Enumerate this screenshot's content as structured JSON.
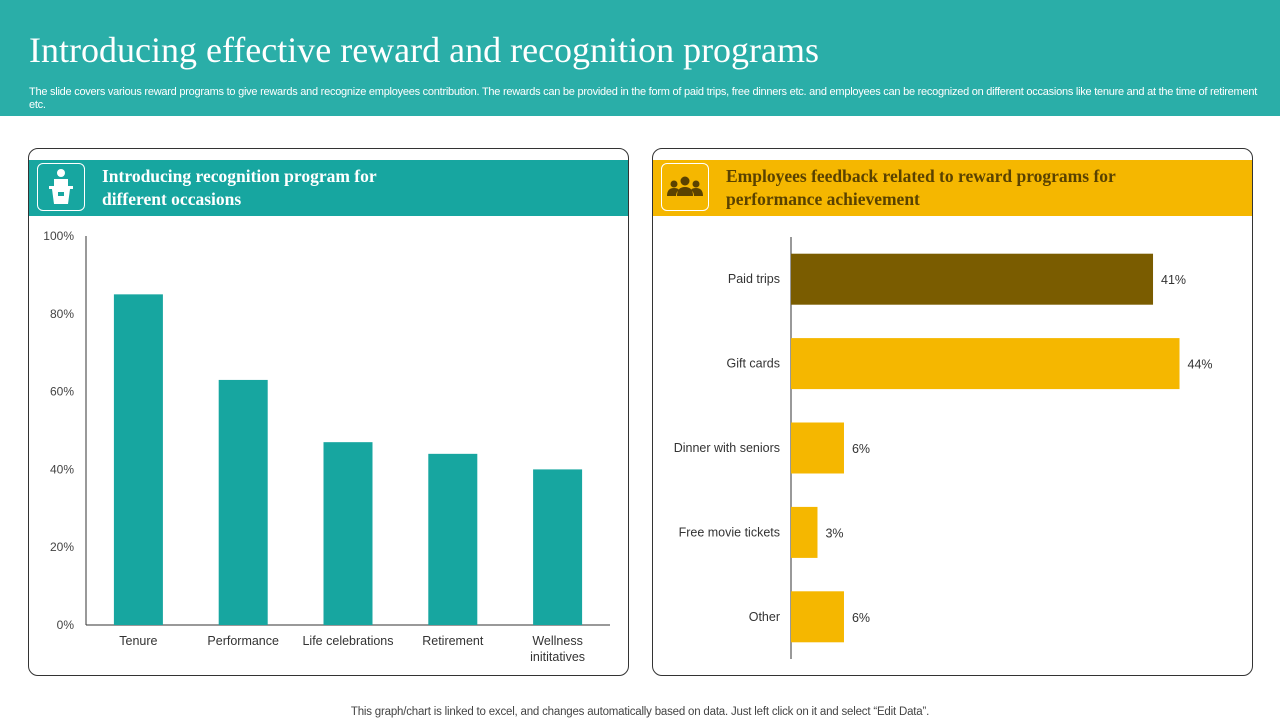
{
  "header": {
    "title": "Introducing effective reward and recognition programs",
    "description": "The slide covers various reward programs to give rewards and recognize employees contribution. The rewards can be provided in the form of paid trips, free dinners etc. and employees can be recognized on different occasions like tenure and at the time of retirement etc."
  },
  "left_panel": {
    "title": "Introducing recognition program for different occasions",
    "icon": "presenter-podium-icon"
  },
  "right_panel": {
    "title": "Employees feedback related to reward programs for performance achievement",
    "icon": "people-group-icon"
  },
  "footer": "This graph/chart is linked to excel, and changes automatically based on data. Just left click on it and select “Edit Data”.",
  "colors": {
    "teal_header": "#2aaea8",
    "teal_bar": "#17a6a0",
    "gold": "#f5b700",
    "dark_gold": "#7a5c00"
  },
  "chart_data": [
    {
      "type": "bar",
      "categories": [
        "Tenure",
        "Performance",
        "Life celebrations",
        "Retirement",
        "Wellness inititatives"
      ],
      "values": [
        85,
        63,
        47,
        44,
        40
      ],
      "yticks": [
        "0%",
        "20%",
        "40%",
        "60%",
        "80%",
        "100%"
      ],
      "ylim": [
        0,
        100
      ],
      "grid": false,
      "color": "#17a6a0"
    },
    {
      "type": "bar",
      "orientation": "horizontal",
      "categories": [
        "Paid trips",
        "Gift cards",
        "Dinner with seniors",
        "Free movie tickets",
        "Other"
      ],
      "values": [
        41,
        44,
        6,
        3,
        6
      ],
      "labels": [
        "41%",
        "44%",
        "6%",
        "3%",
        "6%"
      ],
      "colors": [
        "#7a5c00",
        "#f5b700",
        "#f5b700",
        "#f5b700",
        "#f5b700"
      ],
      "xlim": [
        0,
        50
      ]
    }
  ]
}
